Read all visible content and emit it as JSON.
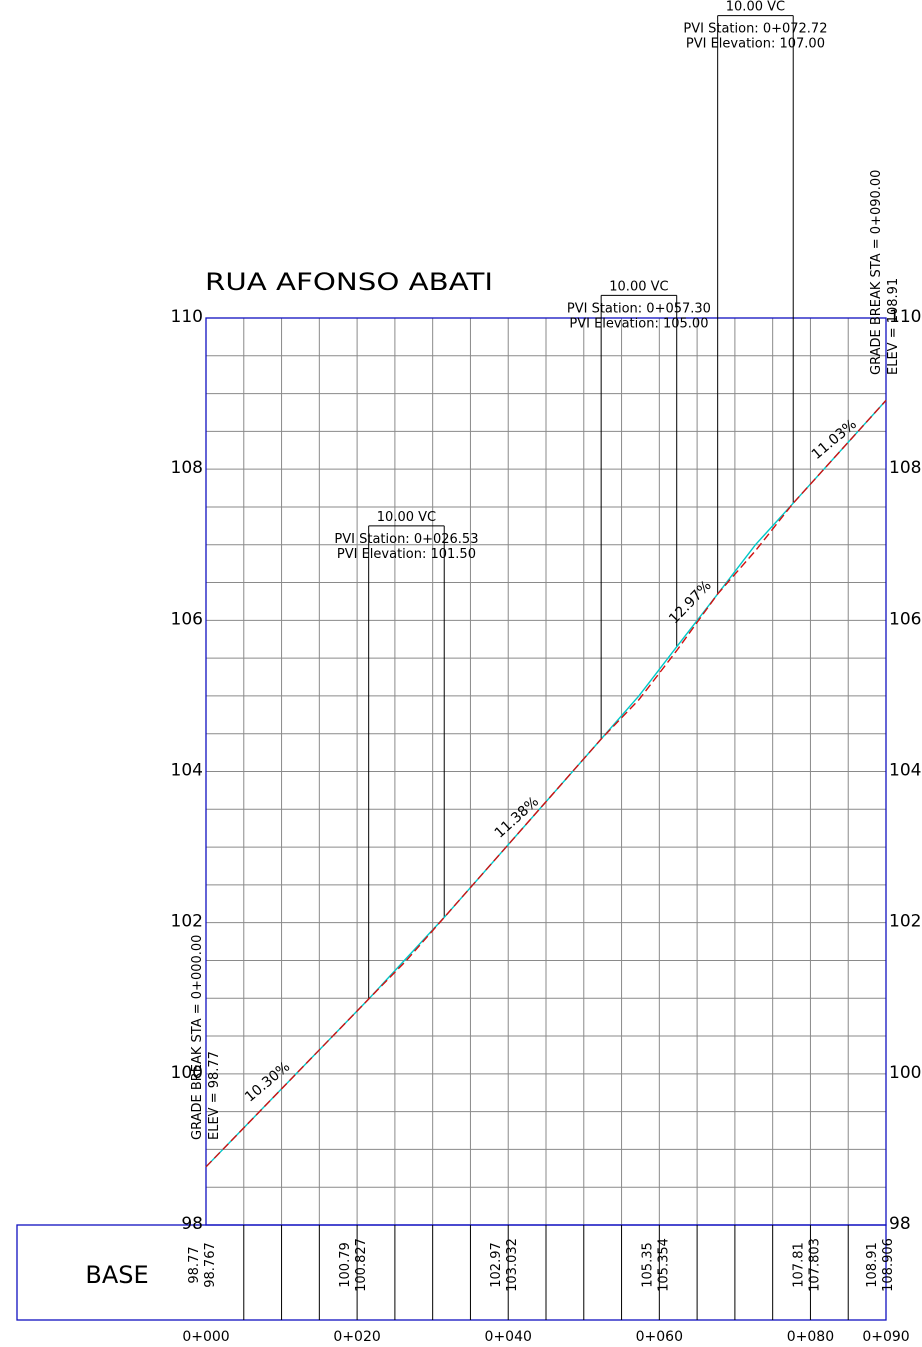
{
  "title": "RUA AFONSO ABATI",
  "chart_data": {
    "type": "line",
    "title": "RUA AFONSO ABATI",
    "x_ticks": [
      "0+000",
      "0+020",
      "0+040",
      "0+060",
      "0+080",
      "0+090"
    ],
    "y_ticks": [
      "98",
      "100",
      "102",
      "104",
      "106",
      "108",
      "110"
    ],
    "xlim": [
      0,
      90
    ],
    "ylim": [
      98,
      110
    ],
    "grid": true,
    "series": [
      {
        "color": "#00c8c8",
        "x": [
          0,
          21.53,
          31.53,
          52.3,
          57.3,
          62.3,
          67.72,
          72.72,
          77.72,
          90
        ],
        "y": [
          98.77,
          100.99,
          102.07,
          104.43,
          105.0,
          105.65,
          106.35,
          107.0,
          107.55,
          108.91
        ]
      },
      {
        "color": "#d01010",
        "x": [
          0,
          21.53,
          26.53,
          31.53,
          52.3,
          57.3,
          62.3,
          67.72,
          72.72,
          77.72,
          90
        ],
        "y": [
          98.77,
          100.99,
          101.5,
          102.07,
          104.43,
          104.95,
          105.6,
          106.35,
          106.92,
          107.55,
          108.91
        ]
      }
    ],
    "annotations": [
      {
        "text": "10.30%",
        "x": 8.5,
        "y": 99.85
      },
      {
        "text": "11.38%",
        "x": 41.5,
        "y": 103.35
      },
      {
        "text": "12.97%",
        "x": 64.5,
        "y": 106.2
      },
      {
        "text": "11.03%",
        "x": 83.5,
        "y": 108.35
      }
    ],
    "vertical_curves": [
      {
        "vc_label": "10.00  VC",
        "station": "PVI  Station: 0+026.53",
        "elevation": "PVI  Elevation: 101.50",
        "bvc": 21.53,
        "evc": 31.53,
        "bvc_elev": 100.99,
        "evc_elev": 102.07,
        "top": 107.25
      },
      {
        "vc_label": "10.00  VC",
        "station": "PVI  Station: 0+057.30",
        "elevation": "PVI  Elevation: 105.00",
        "bvc": 52.3,
        "evc": 62.3,
        "bvc_elev": 104.43,
        "evc_elev": 105.65,
        "top": 110.3
      },
      {
        "vc_label": "10.00  VC",
        "station": "PVI  Station: 0+072.72",
        "elevation": "PVI  Elevation: 107.00",
        "bvc": 67.72,
        "evc": 77.72,
        "bvc_elev": 106.35,
        "evc_elev": 107.55,
        "top": 114.0
      }
    ],
    "grade_breaks": [
      {
        "station_text": "GRADE  BREAK  STA  =  0+000.00",
        "elev_text": "ELEV  =    98.77",
        "x": 0
      },
      {
        "station_text": "GRADE  BREAK  STA  =  0+090.00",
        "elev_text": "ELEV  =  108.91",
        "x": 90
      }
    ],
    "base": {
      "label": "BASE",
      "columns": [
        {
          "x": 0,
          "design": "98.77",
          "existing": "98.767"
        },
        {
          "x": 20,
          "design": "100.79",
          "existing": "100.827"
        },
        {
          "x": 40,
          "design": "102.97",
          "existing": "103.032"
        },
        {
          "x": 60,
          "design": "105.35",
          "existing": "105.354"
        },
        {
          "x": 80,
          "design": "107.81",
          "existing": "107.803"
        },
        {
          "x": 90,
          "design": "108.91",
          "existing": "108.906"
        }
      ]
    }
  }
}
